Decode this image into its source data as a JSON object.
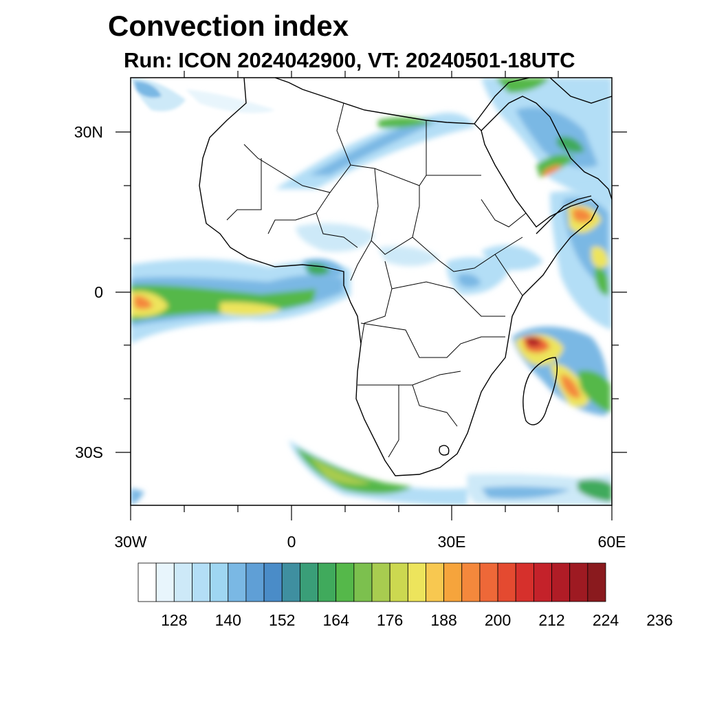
{
  "title": "Convection index",
  "subtitle": "Run: ICON 2024042900,  VT: 20240501-18UTC",
  "map": {
    "lat_ticks": [
      "30N",
      "0",
      "30S"
    ],
    "lon_ticks": [
      "30W",
      "0",
      "30E",
      "60E"
    ]
  },
  "colorbar": {
    "colors": [
      "#ffffff",
      "#e8f5fc",
      "#cde9f8",
      "#b3def6",
      "#9fd6f2",
      "#7ab8e4",
      "#5f9fd6",
      "#4a8cc8",
      "#3f8fa0",
      "#3a9e78",
      "#40aa5c",
      "#55b84a",
      "#7cc04e",
      "#a8cc50",
      "#ccd850",
      "#ede45c",
      "#f8c850",
      "#f6a43c",
      "#f4883c",
      "#ee6838",
      "#e44a30",
      "#d6302c",
      "#c4222a",
      "#b01c26",
      "#9e1a22",
      "#8a1a1e"
    ],
    "labels": [
      "128",
      "140",
      "152",
      "164",
      "176",
      "188",
      "200",
      "212",
      "224",
      "236"
    ]
  }
}
